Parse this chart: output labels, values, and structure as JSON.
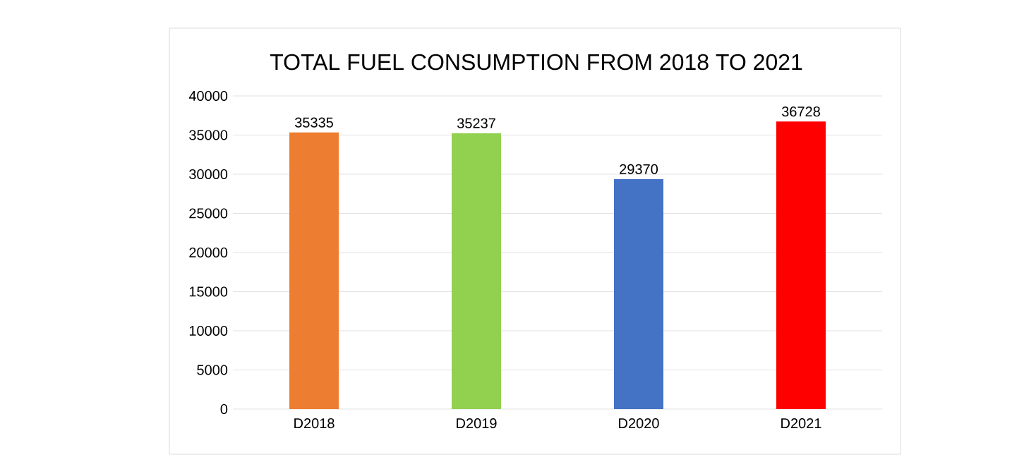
{
  "chart_data": {
    "type": "bar",
    "title": "TOTAL FUEL CONSUMPTION FROM 2018 TO 2021",
    "categories": [
      "D2018",
      "D2019",
      "D2020",
      "D2021"
    ],
    "values": [
      35335,
      35237,
      29370,
      36728
    ],
    "colors": [
      "#ed7d31",
      "#92d050",
      "#4472c4",
      "#ff0000"
    ],
    "ylim": [
      0,
      40000
    ],
    "yticks": [
      0,
      5000,
      10000,
      15000,
      20000,
      25000,
      30000,
      35000,
      40000
    ],
    "grid": "y",
    "data_labels": true
  }
}
